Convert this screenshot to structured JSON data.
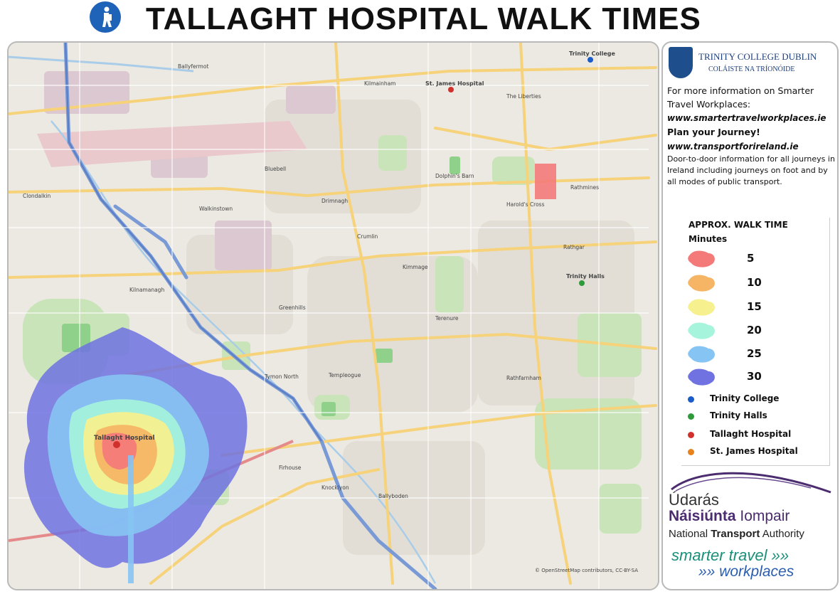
{
  "title": {
    "text": "TALLAGHT HOSPITAL WALK TIMES",
    "icon": "pedestrian-icon"
  },
  "map": {
    "markers": [
      {
        "name": "Tallaght Hospital",
        "color": "#d0312d"
      },
      {
        "name": "St. James Hospital",
        "color": "#e8821e"
      },
      {
        "name": "Trinity College",
        "color": "#1a5cc8"
      },
      {
        "name": "Trinity Halls",
        "color": "#2e9a3a"
      }
    ],
    "labels": {
      "ballyfermot": "Ballyfermot",
      "walkinstown": "Walkinstown",
      "crumlin": "Crumlin",
      "kimmage": "Kimmage",
      "rathmines": "Rathmines",
      "rathgar": "Rathgar",
      "templeogue": "Templeogue",
      "terenure": "Terenure",
      "clondalkin": "Clondalkin",
      "greenhills": "Greenhills",
      "kilnamanagh": "Kilnamanagh",
      "firhouse": "Firhouse",
      "rathfarnham": "Rathfarnham",
      "ballyboden": "Ballyboden",
      "knocklyon": "Knocklyon",
      "tymon_north": "Tymon North",
      "dolphins_barn": "Dolphin's Barn",
      "harolds_cross": "Harold's Cross",
      "the_liberties": "The Liberties",
      "kilmainham": "Kilmainham",
      "bluebell": "Bluebell",
      "drimnagh": "Drimnagh"
    },
    "attribution": "© OpenStreetMap contributors, CC-BY-SA"
  },
  "sidebar": {
    "tcd_name": "TRINITY COLLEGE DUBLIN",
    "tcd_sub": "COLÁISTE NA TRÍONÓIDE",
    "info_line": "For more information on Smarter Travel Workplaces:",
    "url1": "www.smartertravelworkplaces.ie",
    "plan": "Plan your Journey!",
    "url2": "www.transportforireland.ie",
    "desc": "Door-to-door information for all journeys in Ireland including journeys on foot and by all modes of public transport.",
    "legend": {
      "title_line1": "APPROX. WALK TIME",
      "title_line2": "Minutes",
      "items": [
        {
          "minutes": "5",
          "color": "#f47a7a"
        },
        {
          "minutes": "10",
          "color": "#f5b564"
        },
        {
          "minutes": "15",
          "color": "#f6f08e"
        },
        {
          "minutes": "20",
          "color": "#a6f4dc"
        },
        {
          "minutes": "25",
          "color": "#86c4f4"
        },
        {
          "minutes": "30",
          "color": "#6f72e0"
        }
      ],
      "points": [
        {
          "label": "Trinity College",
          "color": "#1a5cc8"
        },
        {
          "label": "Trinity Halls",
          "color": "#2e9a3a"
        },
        {
          "label": "Tallaght Hospital",
          "color": "#d0312d"
        },
        {
          "label": "St. James Hospital",
          "color": "#e8821e"
        }
      ]
    },
    "nta": {
      "line1": "Údarás",
      "line2a": "Náisiúnta",
      "line2b": " Iompair",
      "line3a": "National ",
      "line3b": "Transport",
      "line3c": " Authority",
      "line4": "smarter travel »»",
      "line5": "»» workplaces"
    }
  }
}
